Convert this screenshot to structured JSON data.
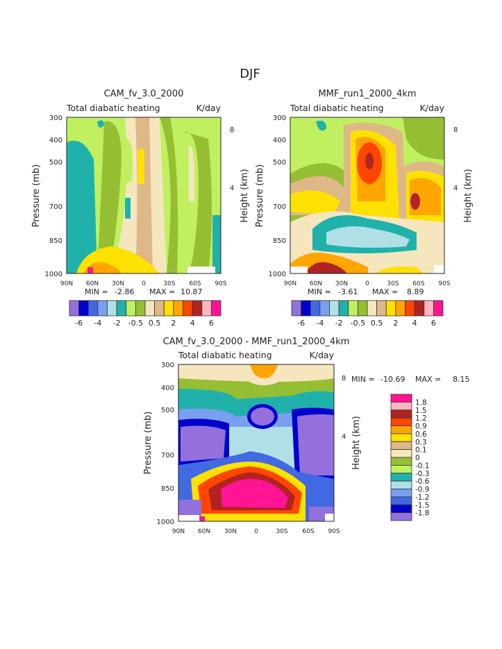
{
  "title": "DJF",
  "chart_data": [
    {
      "type": "heatmap",
      "title": "CAM_fv_3.0_2000",
      "left_subtitle": "Total diabatic heating",
      "right_subtitle": "K/day",
      "xlabel": "",
      "ylabel": "Pressure (mb)",
      "y2label": "Height (km)",
      "x_ticks": [
        "90N",
        "60N",
        "30N",
        "0",
        "30S",
        "60S",
        "90S"
      ],
      "y_ticks": [
        "300",
        "400",
        "500",
        "700",
        "850",
        "1000"
      ],
      "y2_ticks": [
        "8",
        "4"
      ],
      "min_label": "MIN =",
      "min_value": "-2.86",
      "max_label": "MAX =",
      "max_value": "10.87",
      "colorbar_labels": [
        "-6",
        "-4",
        "-2",
        "-0.5",
        "0.5",
        "2",
        "4",
        "6"
      ]
    },
    {
      "type": "heatmap",
      "title": "MMF_run1_2000_4km",
      "left_subtitle": "Total diabatic heating",
      "right_subtitle": "K/day",
      "xlabel": "",
      "ylabel": "Pressure (mb)",
      "y2label": "Height (km)",
      "x_ticks": [
        "90N",
        "60N",
        "30N",
        "0",
        "30S",
        "60S",
        "90S"
      ],
      "y_ticks": [
        "300",
        "400",
        "500",
        "700",
        "850",
        "1000"
      ],
      "y2_ticks": [
        "8",
        "4"
      ],
      "min_label": "MIN =",
      "min_value": "-3.61",
      "max_label": "MAX =",
      "max_value": "8.89",
      "colorbar_labels": [
        "-6",
        "-4",
        "-2",
        "-0.5",
        "0.5",
        "2",
        "4",
        "6"
      ]
    },
    {
      "type": "heatmap",
      "title": "CAM_fv_3.0_2000 - MMF_run1_2000_4km",
      "left_subtitle": "Total diabatic heating",
      "right_subtitle": "K/day",
      "xlabel": "",
      "ylabel": "Pressure (mb)",
      "y2label": "Height (km)",
      "x_ticks": [
        "90N",
        "60N",
        "30N",
        "0",
        "30S",
        "60S",
        "90S"
      ],
      "y_ticks": [
        "300",
        "400",
        "500",
        "700",
        "850",
        "1000"
      ],
      "y2_ticks": [
        "8",
        "4"
      ],
      "min_label": "MIN =",
      "min_value": "-10.69",
      "max_label": "MAX =",
      "max_value": "8.15",
      "colorbar_labels": [
        "1.8",
        "1.5",
        "1.2",
        "0.9",
        "0.6",
        "0.3",
        "0.1",
        "0",
        "-0.1",
        "-0.3",
        "-0.6",
        "-0.9",
        "-1.2",
        "-1.5",
        "-1.8"
      ]
    }
  ],
  "palette": [
    "#9370db",
    "#0000cd",
    "#4169e1",
    "#7b9ff0",
    "#b0e0e6",
    "#20b2aa",
    "#c0f060",
    "#96be32",
    "#f5e6be",
    "#deb887",
    "#ffe100",
    "#ffa500",
    "#ff4500",
    "#b22222",
    "#ffb6c1",
    "#ff1493"
  ]
}
